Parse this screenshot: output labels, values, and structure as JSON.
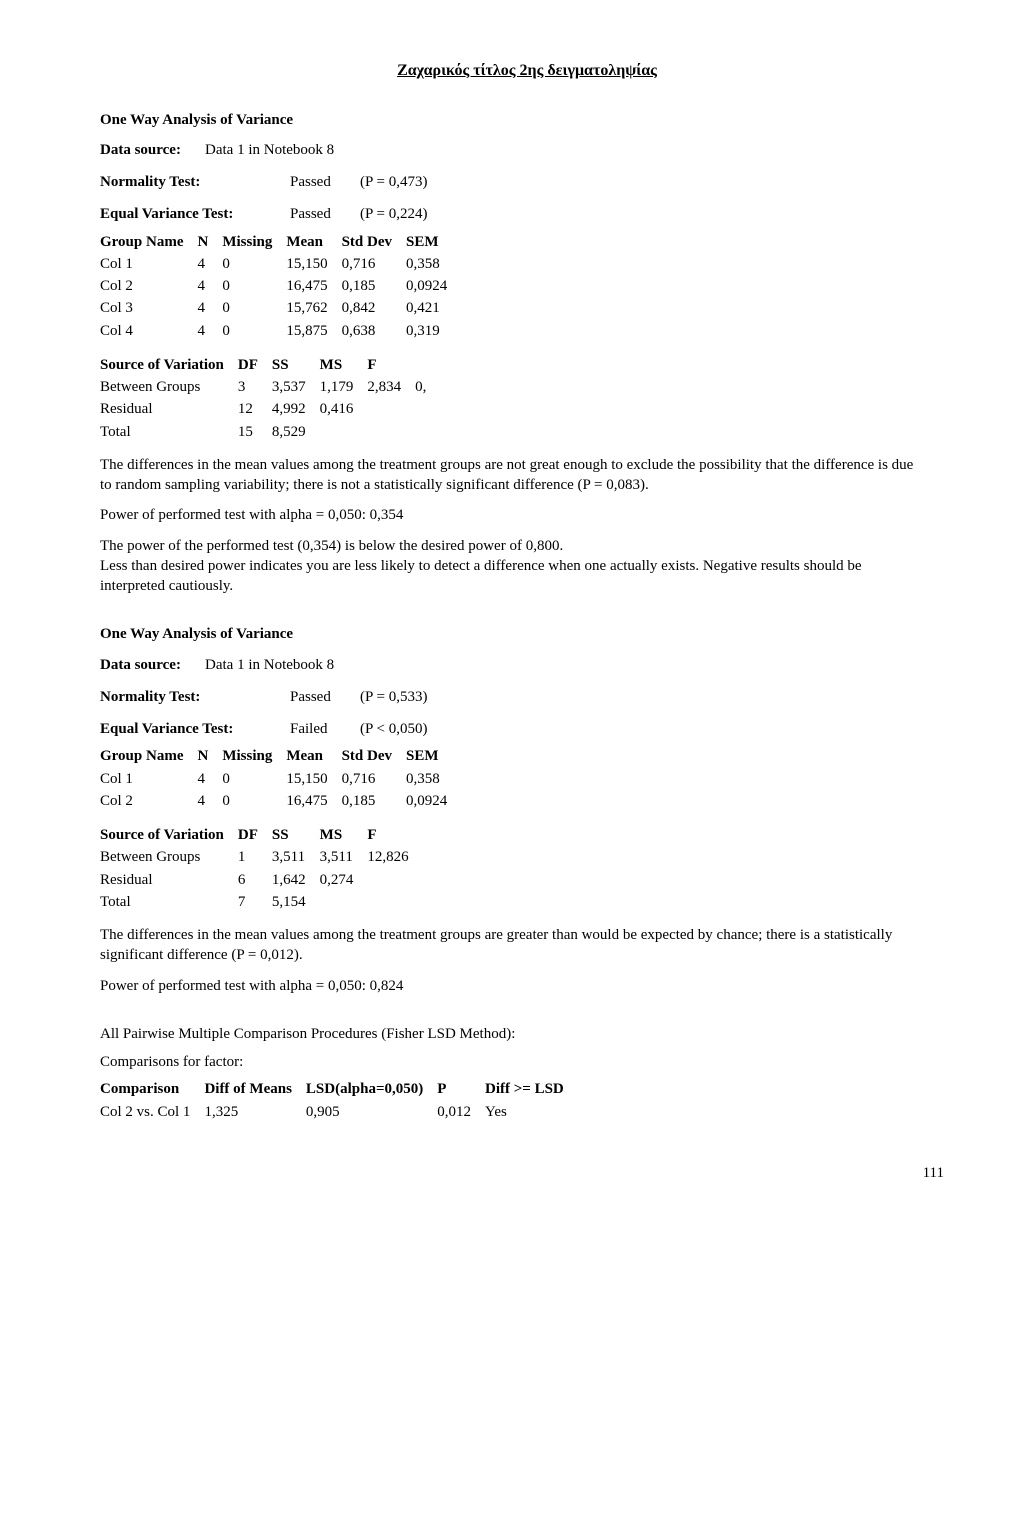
{
  "title": "Ζαχαρικός τίτλος 2ης δειγματοληψίας",
  "s1": {
    "anova_head": "One Way Analysis of Variance",
    "data_source_lbl": "Data source:",
    "data_source_val": "Data 1 in Notebook 8",
    "normality_lbl": "Normality Test:",
    "normality_status": "Passed",
    "normality_p": "(P = 0,473)",
    "eqvar_lbl": "Equal Variance Test:",
    "eqvar_status": "Passed",
    "eqvar_p": "(P = 0,224)",
    "groups_head": [
      "Group Name",
      "N",
      "Missing",
      "Mean",
      "Std Dev",
      "SEM"
    ],
    "groups_rows": [
      [
        "Col 1",
        "4",
        "0",
        "15,150",
        "0,716",
        "0,358"
      ],
      [
        "Col 2",
        "4",
        "0",
        "16,475",
        "0,185",
        "0,0924"
      ],
      [
        "Col 3",
        "4",
        "0",
        "15,762",
        "0,842",
        "0,421"
      ],
      [
        "Col 4",
        "4",
        "0",
        "15,875",
        "0,638",
        "0,319"
      ]
    ],
    "sov_head": [
      "Source of Variation",
      "DF",
      "SS",
      "MS",
      "F",
      ""
    ],
    "sov_rows": [
      [
        "Between Groups",
        "3",
        "3,537",
        "1,179",
        "2,834",
        "0,"
      ],
      [
        "Residual",
        "12",
        "4,992",
        "0,416",
        "",
        ""
      ],
      [
        "Total",
        "15",
        "8,529",
        "",
        "",
        ""
      ]
    ],
    "para1": "The differences in the mean values among the treatment groups are not great enough to exclude the possibility that the difference is due to random sampling variability; there is not a statistically significant difference (P = 0,083).",
    "power_line": "Power of performed test with alpha = 0,050: 0,354",
    "para2a": "The power of the performed test (0,354) is below the desired power of 0,800.",
    "para2b": "Less than desired power indicates you are less likely to detect a difference when one actually exists. Negative results should be interpreted cautiously."
  },
  "s2": {
    "anova_head": "One Way Analysis of Variance",
    "data_source_lbl": "Data source:",
    "data_source_val": "Data 1 in Notebook 8",
    "normality_lbl": "Normality Test:",
    "normality_status": "Passed",
    "normality_p": "(P = 0,533)",
    "eqvar_lbl": "Equal Variance Test:",
    "eqvar_status": "Failed",
    "eqvar_p": "(P < 0,050)",
    "groups_head": [
      "Group Name",
      "N",
      "Missing",
      "Mean",
      "Std Dev",
      "SEM"
    ],
    "groups_rows": [
      [
        "Col 1",
        "4",
        "0",
        "15,150",
        "0,716",
        "0,358"
      ],
      [
        "Col 2",
        "4",
        "0",
        "16,475",
        "0,185",
        "0,0924"
      ]
    ],
    "sov_head": [
      "Source of Variation",
      "DF",
      "SS",
      "MS",
      "F"
    ],
    "sov_rows": [
      [
        "Between Groups",
        "1",
        "3,511",
        "3,511",
        "12,826"
      ],
      [
        "Residual",
        "6",
        "1,642",
        "0,274",
        ""
      ],
      [
        "Total",
        "7",
        "5,154",
        "",
        ""
      ]
    ],
    "para1": "The differences in the mean values among the treatment groups are greater than would be expected by chance; there is a statistically significant difference (P = 0,012).",
    "power_line": "Power of performed test with alpha = 0,050: 0,824",
    "pairwise_head": "All Pairwise Multiple Comparison Procedures (Fisher LSD Method):",
    "comp_factor": "Comparisons for factor:",
    "comp_head": [
      "Comparison",
      "Diff of Means",
      "LSD(alpha=0,050)",
      "P",
      "Diff >= LSD"
    ],
    "comp_rows": [
      [
        "Col 2 vs. Col 1",
        "1,325",
        "0,905",
        "0,012",
        "Yes"
      ]
    ]
  },
  "page_number": "111"
}
